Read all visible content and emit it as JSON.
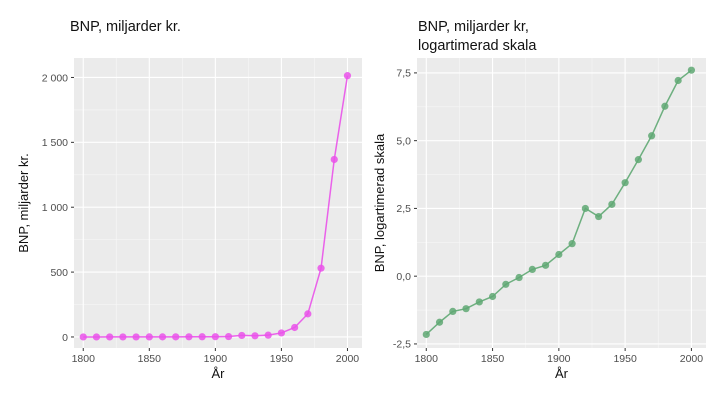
{
  "chart_data": [
    {
      "type": "line",
      "title": "BNP, miljarder kr.",
      "xlabel": "År",
      "ylabel": "BNP, miljarder kr.",
      "x": [
        1800,
        1810,
        1820,
        1830,
        1840,
        1850,
        1860,
        1870,
        1880,
        1890,
        1900,
        1910,
        1920,
        1930,
        1940,
        1950,
        1960,
        1970,
        1980,
        1990,
        2000
      ],
      "series": [
        {
          "values": [
            0.1,
            0.2,
            0.3,
            0.3,
            0.4,
            0.5,
            0.7,
            0.9,
            1.3,
            1.5,
            2.2,
            3.3,
            12,
            9,
            14,
            31,
            73,
            178,
            530,
            1368,
            2014
          ]
        }
      ],
      "xlim": [
        1793,
        2011
      ],
      "ylim": [
        -85,
        2150
      ],
      "xticks": [
        1800,
        1850,
        1900,
        1950,
        2000
      ],
      "xtick_labels": [
        "1800",
        "1850",
        "1900",
        "1950",
        "2000"
      ],
      "yticks": [
        0,
        500,
        1000,
        1500,
        2000
      ],
      "ytick_labels": [
        "0",
        "500",
        "1 000",
        "1 500",
        "2 000"
      ],
      "color": "#ea52ea",
      "grid": true,
      "panel_background": "#ebebeb"
    },
    {
      "type": "line",
      "title": [
        "BNP, miljarder kr,",
        "logartimerad skala"
      ],
      "xlabel": "År",
      "ylabel": "BNP, logartimerad skala",
      "x": [
        1800,
        1810,
        1820,
        1830,
        1840,
        1850,
        1860,
        1870,
        1880,
        1890,
        1900,
        1910,
        1920,
        1930,
        1940,
        1950,
        1960,
        1970,
        1980,
        1990,
        2000
      ],
      "series": [
        {
          "values": [
            -2.15,
            -1.7,
            -1.3,
            -1.2,
            -0.95,
            -0.75,
            -0.3,
            -0.05,
            0.25,
            0.4,
            0.8,
            1.2,
            2.5,
            2.2,
            2.65,
            3.45,
            4.3,
            5.18,
            6.27,
            7.22,
            7.6
          ]
        }
      ],
      "xlim": [
        1793,
        2011
      ],
      "ylim": [
        -2.65,
        8.05
      ],
      "xticks": [
        1800,
        1850,
        1900,
        1950,
        2000
      ],
      "xtick_labels": [
        "1800",
        "1850",
        "1900",
        "1950",
        "2000"
      ],
      "yticks": [
        -2.5,
        0,
        2.5,
        5,
        7.5
      ],
      "ytick_labels": [
        "-2,5",
        "0,0",
        "2,5",
        "5,0",
        "7,5"
      ],
      "color": "#5fa873",
      "grid": true,
      "panel_background": "#ebebeb"
    }
  ]
}
